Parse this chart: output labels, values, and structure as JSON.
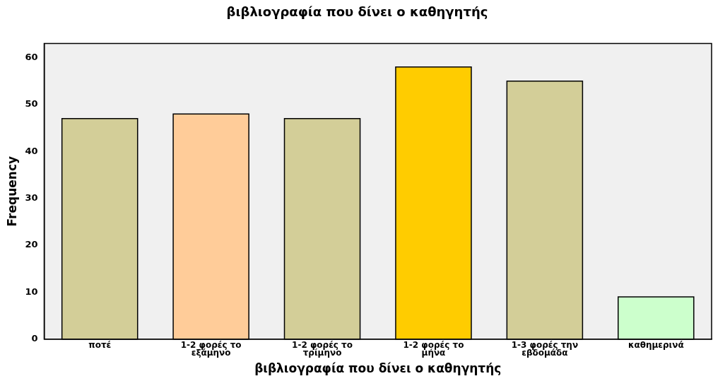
{
  "chart_data": {
    "type": "bar",
    "title": "βιβλιογραφία που δίνει ο καθηγητής",
    "xlabel": "βιβλιογραφία που δίνει ο καθηγητής",
    "ylabel": "Frequency",
    "categories": [
      "ποτέ",
      "1-2 φορές το εξάμηνο",
      "1-2 φορές το τρίμηνο",
      "1-2 φορές το μήνα",
      "1-3 φορές την εβδομάδα",
      "καθημερινά"
    ],
    "values": [
      47,
      48,
      47,
      58,
      55,
      9
    ],
    "colors": [
      "#d3ce98",
      "#ffcc99",
      "#d3ce98",
      "#ffcc00",
      "#d3ce98",
      "#ccffcc"
    ],
    "ylim": [
      0,
      63
    ],
    "yticks": [
      0,
      10,
      20,
      30,
      40,
      50,
      60
    ],
    "grid": false,
    "legend": false
  }
}
